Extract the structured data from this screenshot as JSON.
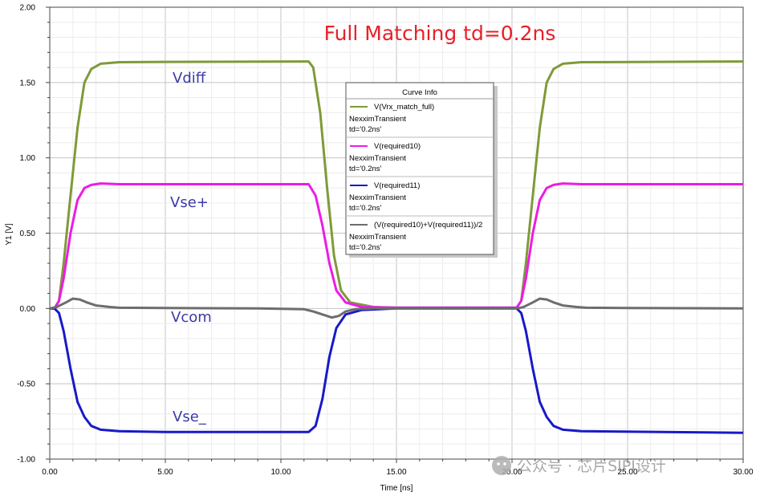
{
  "chart_data": {
    "type": "line",
    "title": "Full Matching td=0.2ns",
    "xlabel": "Time [ns]",
    "ylabel": "Y1 [V]",
    "xlim": [
      0,
      30
    ],
    "ylim": [
      -1.0,
      2.0
    ],
    "x_ticks": [
      "0.00",
      "5.00",
      "10.00",
      "15.00",
      "20.00",
      "25.00",
      "30.00"
    ],
    "y_ticks": [
      "-1.00",
      "-0.50",
      "0.00",
      "0.50",
      "1.00",
      "1.50",
      "2.00"
    ],
    "grid": true,
    "legend": {
      "title": "Curve Info",
      "placement": "top-center"
    },
    "series": [
      {
        "name": "V(Vrx_match_full)",
        "sub1": "NexximTransient",
        "sub2": "td='0.2ns'",
        "color": "#7f9a38",
        "points": [
          [
            0,
            0
          ],
          [
            0.2,
            0
          ],
          [
            0.4,
            0.05
          ],
          [
            0.6,
            0.3
          ],
          [
            0.9,
            0.75
          ],
          [
            1.2,
            1.2
          ],
          [
            1.5,
            1.5
          ],
          [
            1.8,
            1.59
          ],
          [
            2.2,
            1.625
          ],
          [
            3,
            1.635
          ],
          [
            5,
            1.637
          ],
          [
            11.2,
            1.64
          ],
          [
            11.4,
            1.6
          ],
          [
            11.7,
            1.3
          ],
          [
            12,
            0.8
          ],
          [
            12.3,
            0.35
          ],
          [
            12.6,
            0.12
          ],
          [
            13,
            0.04
          ],
          [
            14,
            0.01
          ],
          [
            15,
            0.005
          ],
          [
            20.2,
            0.005
          ],
          [
            20.4,
            0.05
          ],
          [
            20.6,
            0.3
          ],
          [
            20.9,
            0.75
          ],
          [
            21.2,
            1.2
          ],
          [
            21.5,
            1.5
          ],
          [
            21.8,
            1.59
          ],
          [
            22.2,
            1.625
          ],
          [
            23,
            1.635
          ],
          [
            30,
            1.64
          ]
        ]
      },
      {
        "name": "V(required10)",
        "sub1": "NexximTransient",
        "sub2": "td='0.2ns'",
        "color": "#ec1ce6",
        "points": [
          [
            0,
            0
          ],
          [
            0.2,
            0
          ],
          [
            0.4,
            0.05
          ],
          [
            0.6,
            0.2
          ],
          [
            0.9,
            0.5
          ],
          [
            1.2,
            0.72
          ],
          [
            1.5,
            0.8
          ],
          [
            1.8,
            0.82
          ],
          [
            2.2,
            0.83
          ],
          [
            3,
            0.825
          ],
          [
            5,
            0.825
          ],
          [
            11.2,
            0.825
          ],
          [
            11.5,
            0.75
          ],
          [
            11.8,
            0.55
          ],
          [
            12.1,
            0.3
          ],
          [
            12.4,
            0.12
          ],
          [
            12.8,
            0.04
          ],
          [
            13.5,
            0.01
          ],
          [
            15,
            0.005
          ],
          [
            20.2,
            0.005
          ],
          [
            20.4,
            0.05
          ],
          [
            20.6,
            0.2
          ],
          [
            20.9,
            0.5
          ],
          [
            21.2,
            0.72
          ],
          [
            21.5,
            0.8
          ],
          [
            21.8,
            0.82
          ],
          [
            22.2,
            0.83
          ],
          [
            23,
            0.825
          ],
          [
            30,
            0.825
          ]
        ]
      },
      {
        "name": "V(required11)",
        "sub1": "NexximTransient",
        "sub2": "td='0.2ns'",
        "color": "#1919c8",
        "points": [
          [
            0,
            0
          ],
          [
            0.2,
            0
          ],
          [
            0.4,
            -0.03
          ],
          [
            0.6,
            -0.15
          ],
          [
            0.9,
            -0.4
          ],
          [
            1.2,
            -0.62
          ],
          [
            1.5,
            -0.72
          ],
          [
            1.8,
            -0.78
          ],
          [
            2.2,
            -0.805
          ],
          [
            3,
            -0.815
          ],
          [
            5,
            -0.82
          ],
          [
            11.2,
            -0.82
          ],
          [
            11.5,
            -0.78
          ],
          [
            11.8,
            -0.6
          ],
          [
            12.1,
            -0.32
          ],
          [
            12.4,
            -0.13
          ],
          [
            12.8,
            -0.04
          ],
          [
            13.5,
            -0.01
          ],
          [
            15,
            0
          ],
          [
            20.2,
            0
          ],
          [
            20.4,
            -0.03
          ],
          [
            20.6,
            -0.15
          ],
          [
            20.9,
            -0.4
          ],
          [
            21.2,
            -0.62
          ],
          [
            21.5,
            -0.72
          ],
          [
            21.8,
            -0.78
          ],
          [
            22.2,
            -0.805
          ],
          [
            23,
            -0.815
          ],
          [
            30,
            -0.825
          ]
        ]
      },
      {
        "name": "(V(required10)+V(required11))/2",
        "sub1": "NexximTransient",
        "sub2": "td='0.2ns'",
        "color": "#6d6d6d",
        "points": [
          [
            0,
            0
          ],
          [
            0.3,
            0.01
          ],
          [
            0.7,
            0.04
          ],
          [
            1.0,
            0.065
          ],
          [
            1.3,
            0.06
          ],
          [
            1.6,
            0.04
          ],
          [
            2,
            0.02
          ],
          [
            2.6,
            0.01
          ],
          [
            3,
            0.005
          ],
          [
            5,
            0.003
          ],
          [
            9,
            0
          ],
          [
            11,
            -0.005
          ],
          [
            11.4,
            -0.02
          ],
          [
            11.8,
            -0.04
          ],
          [
            12.2,
            -0.06
          ],
          [
            12.5,
            -0.05
          ],
          [
            12.8,
            -0.02
          ],
          [
            13.2,
            -0.005
          ],
          [
            14,
            0
          ],
          [
            20.2,
            0
          ],
          [
            20.5,
            0.01
          ],
          [
            20.9,
            0.04
          ],
          [
            21.2,
            0.065
          ],
          [
            21.5,
            0.06
          ],
          [
            21.8,
            0.04
          ],
          [
            22.2,
            0.02
          ],
          [
            22.8,
            0.01
          ],
          [
            23.2,
            0.005
          ],
          [
            25,
            0.003
          ],
          [
            30,
            0
          ]
        ]
      }
    ],
    "annotations": [
      "Vdiff",
      "Vse+",
      "Vcom",
      "Vse_"
    ]
  },
  "watermark": "公众号 · 芯片SIPI设计"
}
